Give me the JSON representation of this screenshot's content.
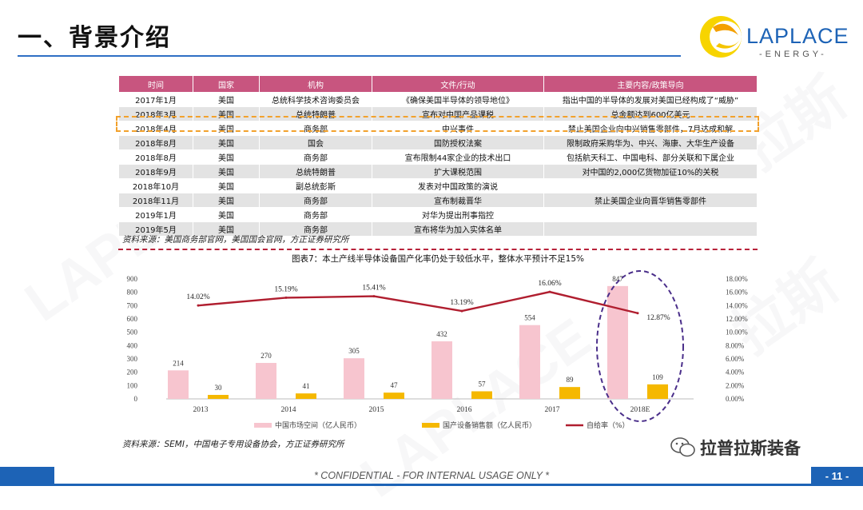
{
  "header": {
    "title": "一、背景介绍",
    "logo_name": "LAPLACE",
    "logo_sub": "-ENERGY-",
    "watermark": "LAPLACE",
    "watermark_cn": "拉斯"
  },
  "table": {
    "columns": [
      "时间",
      "国家",
      "机构",
      "文件/行动",
      "主要内容/政策导向"
    ],
    "rows": [
      [
        "2017年1月",
        "美国",
        "总统科学技术咨询委员会",
        "《确保美国半导体的领导地位》",
        "指出中国的半导体的发展对美国已经构成了“威胁”"
      ],
      [
        "2018年3月",
        "美国",
        "总统特朗普",
        "宣布对中国产品课税",
        "总金额达到600亿美元"
      ],
      [
        "2018年4月",
        "美国",
        "商务部",
        "中兴事件",
        "禁止美国企业向中兴销售零部件，7月达成和解"
      ],
      [
        "2018年8月",
        "美国",
        "国会",
        "国防授权法案",
        "限制政府采购华为、中兴、海康、大华生产设备"
      ],
      [
        "2018年8月",
        "美国",
        "商务部",
        "宣布限制44家企业的技术出口",
        "包括航天科工、中国电科、部分关联和下属企业"
      ],
      [
        "2018年9月",
        "美国",
        "总统特朗普",
        "扩大课税范围",
        "对中国的2,000亿货物加征10%的关税"
      ],
      [
        "2018年10月",
        "美国",
        "副总统彭斯",
        "发表对中国政策的演说",
        ""
      ],
      [
        "2018年11月",
        "美国",
        "商务部",
        "宣布制裁晋华",
        "禁止美国企业向晋华销售零部件"
      ],
      [
        "2019年1月",
        "美国",
        "商务部",
        "对华为提出刑事指控",
        ""
      ],
      [
        "2019年5月",
        "美国",
        "商务部",
        "宣布将华为加入实体名单",
        ""
      ]
    ],
    "highlight_row": 2,
    "source": "资料来源：美国商务部官网，美国国会官网，方正证券研究所"
  },
  "chart_data": {
    "type": "bar",
    "title": "图表7：本土产线半导体设备国产化率仍处于较低水平，整体水平预计不足15%",
    "categories": [
      "2013",
      "2014",
      "2015",
      "2016",
      "2017",
      "2018E"
    ],
    "series": [
      {
        "name": "中国市场空间（亿人民币）",
        "type": "bar",
        "axis": "left",
        "color": "#f7c5cf",
        "values": [
          214,
          270,
          305,
          432,
          554,
          847
        ]
      },
      {
        "name": "国产设备销售额（亿人民币）",
        "type": "bar",
        "axis": "left",
        "color": "#f5b800",
        "values": [
          30,
          41,
          47,
          57,
          89,
          109
        ]
      },
      {
        "name": "自给率（%）",
        "type": "line",
        "axis": "right",
        "color": "#b01e2f",
        "values": [
          14.02,
          15.19,
          15.41,
          13.19,
          16.06,
          12.87
        ],
        "labels": [
          "14.02%",
          "15.19%",
          "15.41%",
          "13.19%",
          "16.06%",
          "12.87%"
        ]
      }
    ],
    "y_left": {
      "min": 0,
      "max": 900,
      "ticks": [
        "0",
        "100",
        "200",
        "300",
        "400",
        "500",
        "600",
        "700",
        "800",
        "900"
      ]
    },
    "y_right": {
      "min": 0,
      "max": 18,
      "ticks": [
        "0.00%",
        "2.00%",
        "4.00%",
        "6.00%",
        "8.00%",
        "10.00%",
        "12.00%",
        "14.00%",
        "16.00%",
        "18.00%"
      ]
    },
    "legend_position": "bottom",
    "highlight_category": "2018E",
    "highlight_color": "#4a2e8a",
    "source": "资料来源：SEMI，中国电子专用设备协会，方正证券研究所"
  },
  "footer": {
    "confidential": "* CONFIDENTIAL - FOR INTERNAL USAGE ONLY *",
    "page": "- 11 -",
    "wechat": "拉普拉斯装备"
  },
  "colors": {
    "brand": "#1d63b6",
    "table_header": "#c8557f",
    "highlight_box": "#f2a12c",
    "divider": "#b8223a"
  }
}
